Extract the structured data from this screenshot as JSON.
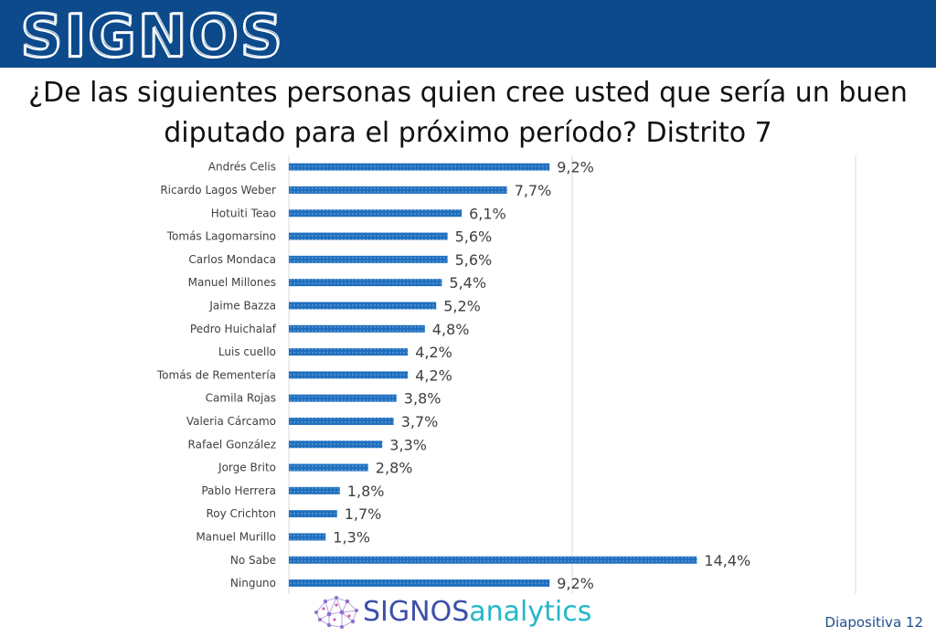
{
  "header": {
    "logo_text": "SIGNOS",
    "title_line1": "¿De las siguientes personas quien cree usted que sería un buen",
    "title_line2": "diputado para el próximo período? Distrito 7"
  },
  "colors": {
    "banner": "#0c4a8c",
    "bar": "#1f6fbf",
    "grid": "#d9d9d9",
    "brand_primary": "#3c4fa8",
    "brand_secondary": "#23b7c8"
  },
  "chart_data": {
    "type": "bar",
    "orientation": "horizontal",
    "categories": [
      "Andrés Celis",
      "Ricardo Lagos Weber",
      "Hotuiti Teao",
      "Tomás Lagomarsino",
      "Carlos Mondaca",
      "Manuel Millones",
      "Jaime Bazza",
      "Pedro Huichalaf",
      "Luis cuello",
      "Tomás de Rementería",
      "Camila Rojas",
      "Valeria Cárcamo",
      "Rafael González",
      "Jorge Brito",
      "Pablo Herrera",
      "Roy Crichton",
      "Manuel Murillo",
      "No Sabe",
      "Ninguno"
    ],
    "values": [
      9.2,
      7.7,
      6.1,
      5.6,
      5.6,
      5.4,
      5.2,
      4.8,
      4.2,
      4.2,
      3.8,
      3.7,
      3.3,
      2.8,
      1.8,
      1.7,
      1.3,
      14.4,
      9.2
    ],
    "value_labels": [
      "9,2%",
      "7,7%",
      "6,1%",
      "5,6%",
      "5,6%",
      "5,4%",
      "5,2%",
      "4,8%",
      "4,2%",
      "4,2%",
      "3,8%",
      "3,7%",
      "3,3%",
      "2,8%",
      "1,8%",
      "1,7%",
      "1,3%",
      "14,4%",
      "9,2%"
    ],
    "xlim": [
      0,
      20
    ],
    "gridlines_at": [
      0,
      10,
      20
    ],
    "grid": true,
    "legend": "none"
  },
  "footer": {
    "brand_part1": "SIGNOS",
    "brand_part2": "analytics",
    "logo_icon": "network-brain-icon",
    "slide_label": "Diapositiva 12"
  }
}
